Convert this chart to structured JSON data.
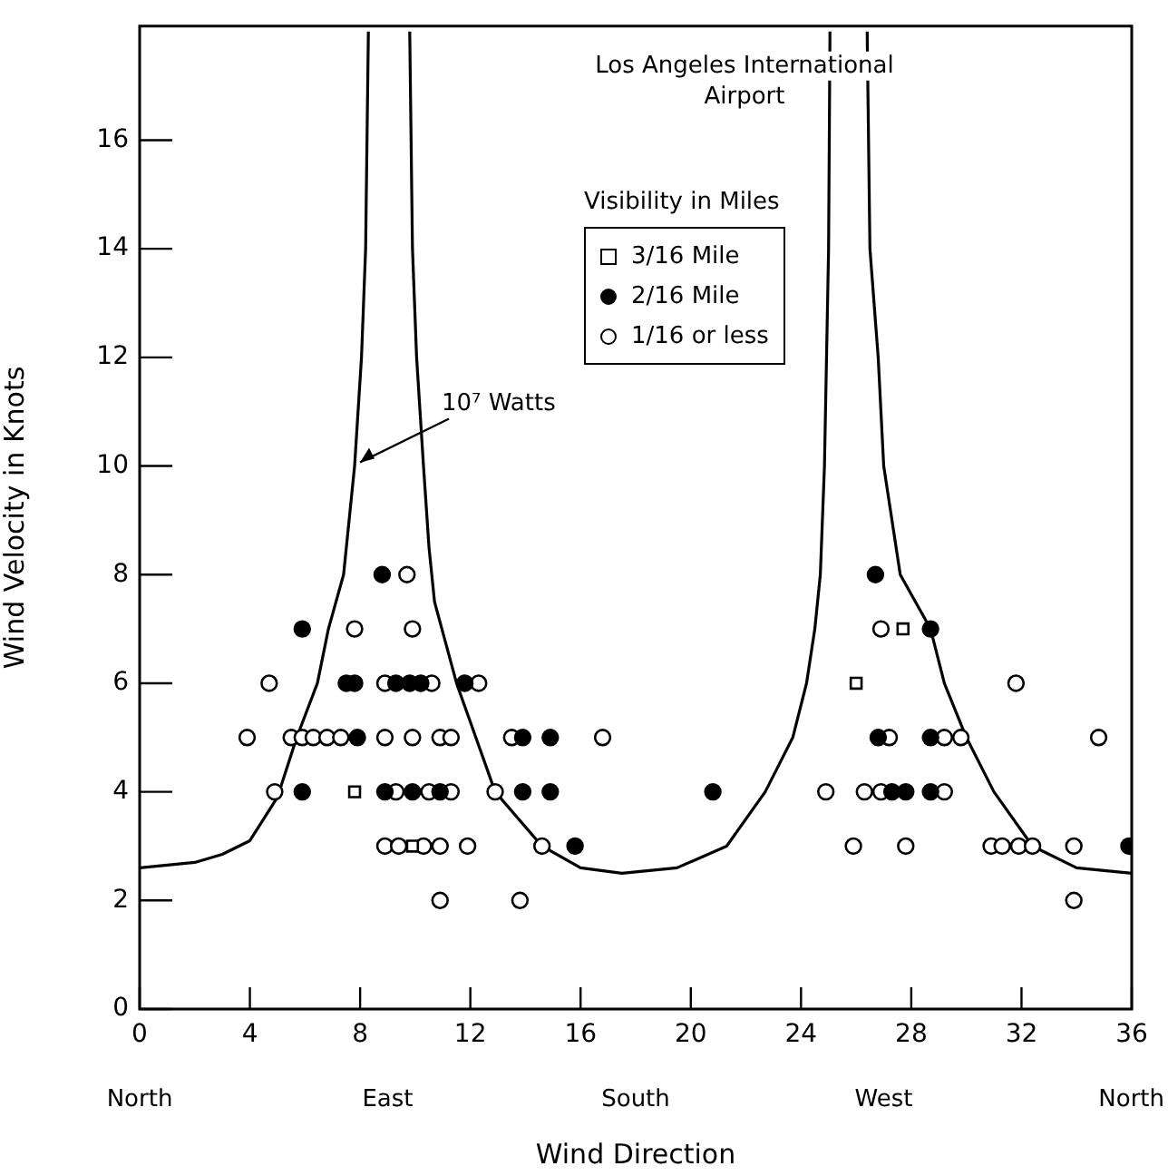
{
  "chart_data": {
    "type": "scatter",
    "title": "Los Angeles International Airport",
    "xlabel": "Wind Direction",
    "ylabel": "Wind Velocity in Knots",
    "legend_title": "Visibility in Miles",
    "legend": "top right",
    "grid": false,
    "xlim": [
      0,
      36
    ],
    "xticks": [
      0,
      4,
      8,
      12,
      16,
      20,
      24,
      28,
      32,
      36
    ],
    "ylim": [
      0,
      18.1
    ],
    "yticks": [
      0,
      2,
      4,
      6,
      8,
      10,
      12,
      14,
      16
    ],
    "series": [
      {
        "name": "3/16 Mile",
        "color": "#ffffff",
        "marker": "square",
        "x": [
          7.8,
          9.9,
          26.0,
          27.7
        ],
        "values": [
          4,
          3,
          6,
          7
        ]
      },
      {
        "name": "2/16 Mile",
        "color": "#000000",
        "marker": "circle",
        "x": [
          5.9,
          8.8,
          26.7,
          28.7,
          7.5,
          7.8,
          9.3,
          9.8,
          10.2,
          11.8,
          7.9,
          13.9,
          14.9,
          26.8,
          28.7,
          5.9,
          8.9,
          9.9,
          10.9,
          13.9,
          14.9,
          20.8,
          27.3,
          27.8,
          28.7,
          15.8,
          35.9
        ],
        "values": [
          7,
          8,
          8,
          7,
          6,
          6,
          6,
          6,
          6,
          6,
          5,
          5,
          5,
          5,
          5,
          4,
          4,
          4,
          4,
          4,
          4,
          4,
          4,
          4,
          4,
          3,
          3
        ]
      },
      {
        "name": "1/16 or less",
        "color": "#ffffff",
        "marker": "circle",
        "x": [
          9.7,
          7.8,
          9.9,
          26.9,
          4.7,
          8.9,
          10.6,
          12.3,
          31.8,
          3.9,
          5.5,
          5.9,
          6.3,
          6.8,
          7.3,
          8.9,
          9.9,
          10.9,
          11.3,
          13.5,
          16.8,
          27.2,
          29.2,
          29.8,
          34.8,
          4.9,
          9.3,
          10.5,
          11.3,
          12.9,
          24.9,
          26.3,
          26.9,
          29.2,
          8.9,
          9.4,
          10.3,
          10.9,
          11.9,
          14.6,
          25.9,
          27.8,
          30.9,
          31.3,
          31.9,
          32.4,
          33.9,
          10.9,
          13.8,
          33.9
        ],
        "values": [
          8,
          7,
          7,
          7,
          6,
          6,
          6,
          6,
          6,
          5,
          5,
          5,
          5,
          5,
          5,
          5,
          5,
          5,
          5,
          5,
          5,
          5,
          5,
          5,
          5,
          4,
          4,
          4,
          4,
          4,
          4,
          4,
          4,
          4,
          3,
          3,
          3,
          3,
          3,
          3,
          3,
          3,
          3,
          3,
          3,
          3,
          3,
          2,
          2,
          2
        ]
      },
      {
        "type": "line",
        "color": "#000000",
        "marker": "none",
        "line_style": "solid",
        "x": [
          0,
          2,
          3,
          4,
          5,
          5.7,
          6.45,
          6.85,
          7.4,
          7.8,
          8.05,
          8.2,
          8.3,
          9,
          9.8,
          9.9,
          10.05,
          10.3,
          10.5,
          10.7,
          11.5,
          12.2,
          12.9,
          14.6,
          16,
          17.5,
          19.5,
          21.3,
          22.7,
          23.7,
          24.2,
          24.5,
          24.7,
          24.85,
          25,
          25.05,
          25.7,
          26.4,
          26.5,
          26.8,
          27,
          27.6,
          28.7,
          29.2,
          30,
          31,
          32.4,
          34,
          36
        ],
        "values": [
          2.6,
          2.7,
          2.85,
          3.1,
          3.9,
          5,
          6,
          7,
          8,
          10,
          12,
          14,
          18,
          null,
          18,
          14,
          12,
          10,
          8.5,
          7.5,
          6,
          5,
          4,
          3,
          2.6,
          2.5,
          2.6,
          3,
          4,
          5,
          6,
          7,
          8,
          10,
          14,
          18,
          null,
          18,
          14,
          12,
          10,
          8,
          7,
          6,
          5,
          4,
          3,
          2.6,
          2.5
        ]
      }
    ],
    "annotations": [
      {
        "text": "10⁷ Watts",
        "x": 7.8,
        "y": 10
      },
      "North",
      "East",
      "South",
      "West",
      "North"
    ]
  }
}
